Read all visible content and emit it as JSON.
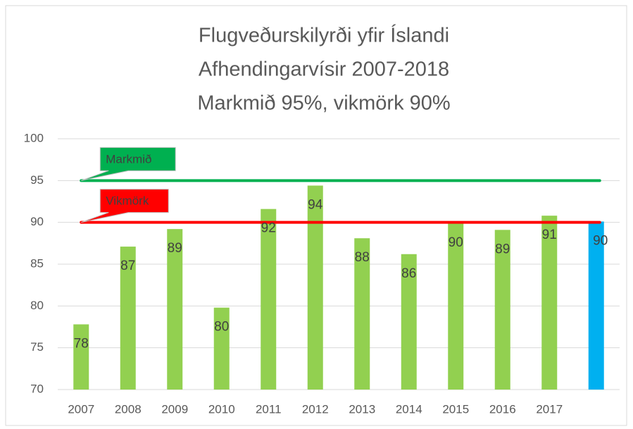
{
  "chart_data": {
    "type": "bar",
    "title": [
      "Flugveðurskilyrði yfir Íslandi",
      "Afhendingarvísir 2007-2018",
      "Markmið 95%, vikmörk 90%"
    ],
    "categories": [
      "2007",
      "2008",
      "2009",
      "2010",
      "2011",
      "2012",
      "2013",
      "2014",
      "2015",
      "2016",
      "2017",
      null
    ],
    "values": [
      77.8,
      87.1,
      89.2,
      79.8,
      91.6,
      94.4,
      88.1,
      86.2,
      89.9,
      89.1,
      90.8,
      90.1
    ],
    "value_labels": [
      "78",
      "87",
      "89",
      "80",
      "92",
      "94",
      "88",
      "86",
      "90",
      "89",
      "91",
      "90"
    ],
    "colors": [
      "#92d050",
      "#92d050",
      "#92d050",
      "#92d050",
      "#92d050",
      "#92d050",
      "#92d050",
      "#92d050",
      "#92d050",
      "#92d050",
      "#92d050",
      "#00b0f0"
    ],
    "reference_lines": [
      {
        "name": "Markmið",
        "value": 95,
        "color": "#00b050"
      },
      {
        "name": "Vikmörk",
        "value": 90,
        "color": "#ff0000"
      }
    ],
    "ylim": [
      70,
      100
    ],
    "yticks": [
      70,
      75,
      80,
      85,
      90,
      95,
      100
    ],
    "grid": true
  }
}
